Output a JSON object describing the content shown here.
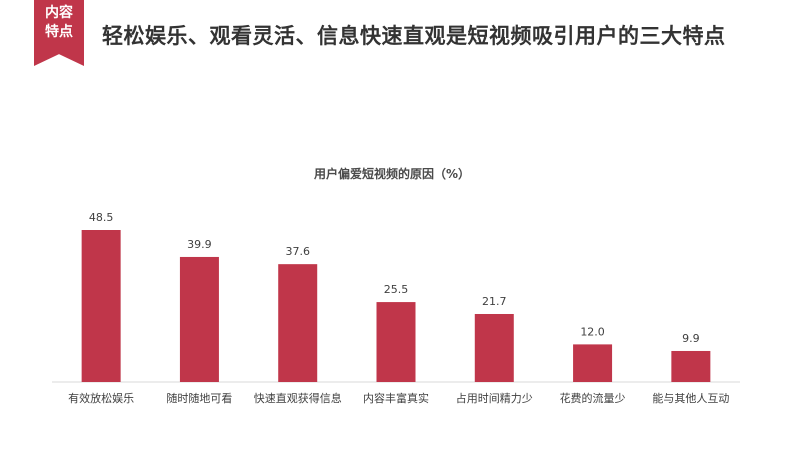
{
  "badge": {
    "line1": "内容",
    "line2": "特点"
  },
  "headline": "轻松娱乐、观看灵活、信息快速直观是短视频吸引用户的三大特点",
  "colors": {
    "accent": "#c0364a",
    "bar": "#c0364a",
    "axis": "#d9d9d9"
  },
  "chart_data": {
    "type": "bar",
    "title": "用户偏爱短视频的原因（%）",
    "categories": [
      "有效放松娱乐",
      "随时随地可看",
      "快速直观获得信息",
      "内容丰富真实",
      "占用时间精力少",
      "花费的流量少",
      "能与其他人互动"
    ],
    "values": [
      48.5,
      39.9,
      37.6,
      25.5,
      21.7,
      12.0,
      9.9
    ],
    "value_labels": [
      "48.5",
      "39.9",
      "37.6",
      "25.5",
      "21.7",
      "12.0",
      "9.9"
    ],
    "xlabel": "",
    "ylabel": "",
    "ylim": [
      0,
      50
    ],
    "grid": false,
    "legend": "none"
  }
}
